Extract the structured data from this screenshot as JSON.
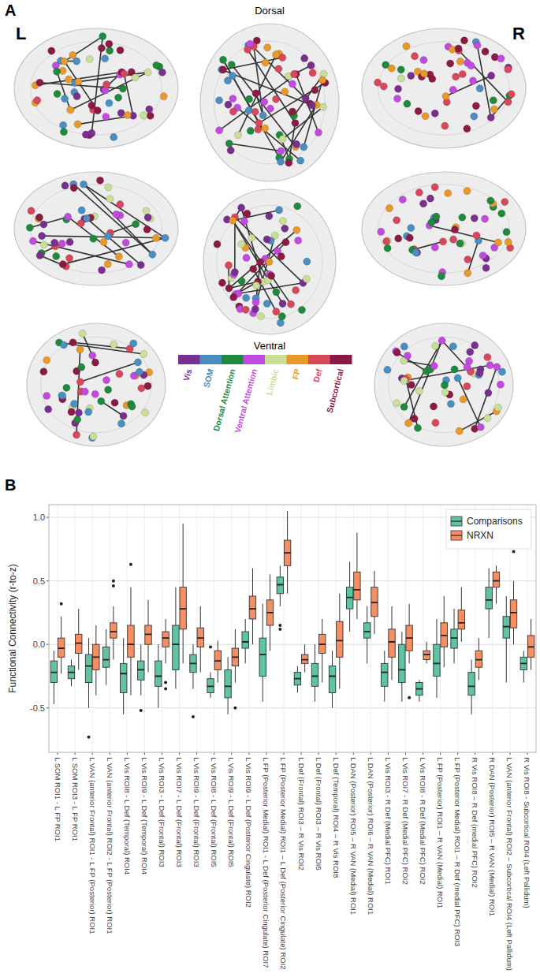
{
  "figure": {
    "panel_a": {
      "letter": "A",
      "left": "L",
      "right": "R",
      "top_label": "Dorsal",
      "bottom_label": "Ventral",
      "networks": [
        {
          "name": "Vis",
          "color": "#7a2f8f"
        },
        {
          "name": "SOM",
          "color": "#4a8ec2"
        },
        {
          "name": "Dorsal Attention",
          "color": "#1f8a3c"
        },
        {
          "name": "Ventral Attention",
          "color": "#c24ae0"
        },
        {
          "name": "Limbic",
          "color": "#c9df98"
        },
        {
          "name": "FP",
          "color": "#e8992a"
        },
        {
          "name": "Def",
          "color": "#d9475a"
        },
        {
          "name": "Subcortical",
          "color": "#8b1a45"
        }
      ]
    },
    "panel_b": {
      "letter": "B"
    }
  },
  "chart_data": {
    "type": "box",
    "y_label": "Functional Connectivity (r-to-z)",
    "ylim": [
      -0.85,
      1.1
    ],
    "yticks": [
      -0.5,
      {
        "value": 0,
        "label": "0.0"
      },
      0.5,
      {
        "value": 1,
        "label": "1.0"
      }
    ],
    "grid": true,
    "legend": "top-right",
    "categories": [
      "L SOM ROI1 - L FP ROI1",
      "L SOM ROI3 - L FP ROI1",
      "L VAN (anterior Frontal) ROI1 - L FP (Posterior) ROI1",
      "L VAN (anterior Frontal) ROI2 - L FP (Posterior) ROI1",
      "L Vis ROI8 - L Def (Temporal) ROI4",
      "L Vis ROI9 - L Def (Temporal) ROI4",
      "L Vis ROI3 - L Def (Frontal) ROI3",
      "L Vis ROI7 - L Def (Frontal) ROI3",
      "L Vis ROI9 - L Def (Frontal) ROI3",
      "L Vis ROI8 - L Def (Frontal) ROI5",
      "L Vis ROI9 - L Def (Frontal) ROI5",
      "L Vis ROI9 - L Def (Posterior Cingulate) ROI2",
      "L FP (Posterior Medial) ROI1 - L Def (Posterior Cingulate) ROI7",
      "L FP (Posterior Medial) ROI1 – L Def (Posterior Cingulate) ROI2",
      "L Def (Frontal) ROI3 – R Vis ROI2",
      "L Def (Frontal) ROI3 – R Vis ROI5",
      "L Def (Temporal) ROI4 – R Vis ROI8",
      "L DAN (Posterior) ROI5 – R VAN (Medial) ROI1",
      "L DAN (Posterior) ROI6 – R VAN (Medial) ROI1",
      "L Vis ROI3 - R Def (Medial PFC) ROI1",
      "L Vis ROI7 - R Def (Medial PFC) ROI2",
      "L Vis ROI8 - R Def (Medial PFC) ROI2",
      "L FP (Posterior) ROI1 – R VAN (Medial) ROI1",
      "L FP (Posterior Medial) ROI1 – R Def (medial PFC) ROI3",
      "R Vis ROI8 – R Def (medial PFC) ROI2",
      "R DAN (Posterior) ROI5 – R VAN (Medial) ROI1",
      "L VAN (anterior Frontal) ROI2 – Subcortical ROI4 (Left Pallidum)",
      "R Vis ROI8 - Subcortical ROI4 (Left Pallidum)"
    ],
    "series": [
      {
        "name": "Comparisons",
        "color": "#5fc4a2",
        "min": [
          -0.47,
          -0.33,
          -0.5,
          -0.32,
          -0.55,
          -0.4,
          -0.5,
          -0.35,
          -0.35,
          -0.42,
          -0.55,
          -0.15,
          -0.45,
          0.3,
          -0.38,
          -0.45,
          -0.5,
          0.1,
          -0.15,
          -0.45,
          -0.45,
          -0.45,
          -0.42,
          -0.15,
          -0.55,
          0.05,
          -0.3,
          -0.3
        ],
        "q1": [
          -0.3,
          -0.27,
          -0.3,
          -0.18,
          -0.38,
          -0.28,
          -0.33,
          -0.2,
          -0.22,
          -0.38,
          -0.42,
          -0.03,
          -0.25,
          0.4,
          -0.32,
          -0.33,
          -0.38,
          0.28,
          0.05,
          -0.33,
          -0.3,
          -0.4,
          -0.25,
          -0.03,
          -0.4,
          0.28,
          0.05,
          -0.2
        ],
        "median": [
          -0.22,
          -0.22,
          -0.17,
          -0.12,
          -0.23,
          -0.2,
          -0.25,
          0.0,
          -0.15,
          -0.33,
          -0.33,
          0.02,
          -0.08,
          0.47,
          -0.27,
          -0.25,
          -0.25,
          0.37,
          0.1,
          -0.22,
          -0.2,
          -0.35,
          -0.15,
          0.05,
          -0.33,
          0.35,
          0.14,
          -0.15
        ],
        "q3": [
          -0.13,
          -0.17,
          -0.08,
          -0.02,
          -0.15,
          -0.13,
          -0.13,
          0.15,
          -0.08,
          -0.27,
          -0.2,
          0.1,
          0.05,
          0.53,
          -0.22,
          -0.15,
          -0.17,
          0.45,
          0.17,
          -0.15,
          0.0,
          -0.3,
          0.0,
          0.12,
          -0.22,
          0.45,
          0.22,
          -0.1
        ],
        "max": [
          -0.05,
          -0.12,
          0.05,
          0.12,
          0.05,
          0.0,
          0.0,
          0.45,
          0.0,
          -0.22,
          -0.1,
          0.2,
          0.32,
          0.62,
          -0.17,
          0.0,
          -0.05,
          0.65,
          0.3,
          -0.05,
          0.1,
          -0.28,
          0.2,
          0.28,
          -0.12,
          0.6,
          0.38,
          -0.05
        ],
        "outliers": [
          [],
          [],
          [
            -0.73
          ],
          [],
          [],
          [
            -0.52
          ],
          [],
          [],
          [
            -0.57
          ],
          [
            -0.02
          ],
          [],
          [],
          [],
          [
            0.12,
            0.15
          ],
          [],
          [],
          [],
          [],
          [],
          [],
          [],
          [],
          [],
          [],
          [],
          [],
          [],
          []
        ]
      },
      {
        "name": "NRXN",
        "color": "#f78e63",
        "min": [
          -0.23,
          -0.2,
          -0.4,
          -0.12,
          -0.4,
          -0.22,
          -0.15,
          -0.15,
          -0.22,
          -0.3,
          -0.3,
          0.0,
          -0.05,
          0.4,
          -0.22,
          -0.3,
          -0.35,
          0.2,
          0.08,
          -0.28,
          -0.15,
          -0.15,
          -0.18,
          0.02,
          -0.28,
          0.32,
          0.0,
          -0.2
        ],
        "q1": [
          -0.1,
          -0.07,
          -0.2,
          0.05,
          -0.1,
          0.0,
          -0.02,
          0.12,
          -0.02,
          -0.2,
          -0.17,
          0.2,
          0.15,
          0.62,
          -0.15,
          -0.07,
          -0.1,
          0.35,
          0.22,
          -0.1,
          -0.05,
          -0.12,
          -0.02,
          0.12,
          -0.18,
          0.45,
          0.13,
          -0.1
        ],
        "median": [
          -0.03,
          0.01,
          -0.1,
          0.1,
          0.0,
          0.08,
          0.05,
          0.28,
          0.05,
          -0.13,
          -0.1,
          0.28,
          0.25,
          0.72,
          -0.12,
          0.0,
          0.03,
          0.43,
          0.33,
          0.02,
          0.05,
          -0.08,
          0.07,
          0.17,
          -0.12,
          0.5,
          0.25,
          -0.02
        ],
        "q3": [
          0.05,
          0.08,
          0.0,
          0.17,
          0.15,
          0.15,
          0.1,
          0.45,
          0.13,
          -0.05,
          -0.03,
          0.38,
          0.35,
          0.82,
          -0.08,
          0.08,
          0.18,
          0.57,
          0.45,
          0.12,
          0.15,
          -0.05,
          0.17,
          0.27,
          -0.05,
          0.57,
          0.35,
          0.07
        ],
        "max": [
          0.22,
          0.28,
          0.15,
          0.3,
          0.45,
          0.35,
          0.2,
          0.95,
          0.3,
          0.03,
          0.12,
          0.6,
          0.55,
          1.05,
          0.0,
          0.2,
          0.4,
          0.88,
          0.58,
          0.3,
          0.32,
          0.02,
          0.38,
          0.45,
          0.05,
          0.62,
          0.5,
          0.2
        ],
        "outliers": [
          [
            0.32
          ],
          [],
          [],
          [
            0.46,
            0.5
          ],
          [
            0.63
          ],
          [],
          [
            -0.3,
            -0.35
          ],
          [],
          [],
          [],
          [
            -0.5
          ],
          [],
          [],
          [],
          [],
          [],
          [],
          [],
          [],
          [],
          [
            -0.42
          ],
          [],
          [],
          [],
          [],
          [],
          [
            0.73
          ],
          []
        ]
      }
    ]
  }
}
